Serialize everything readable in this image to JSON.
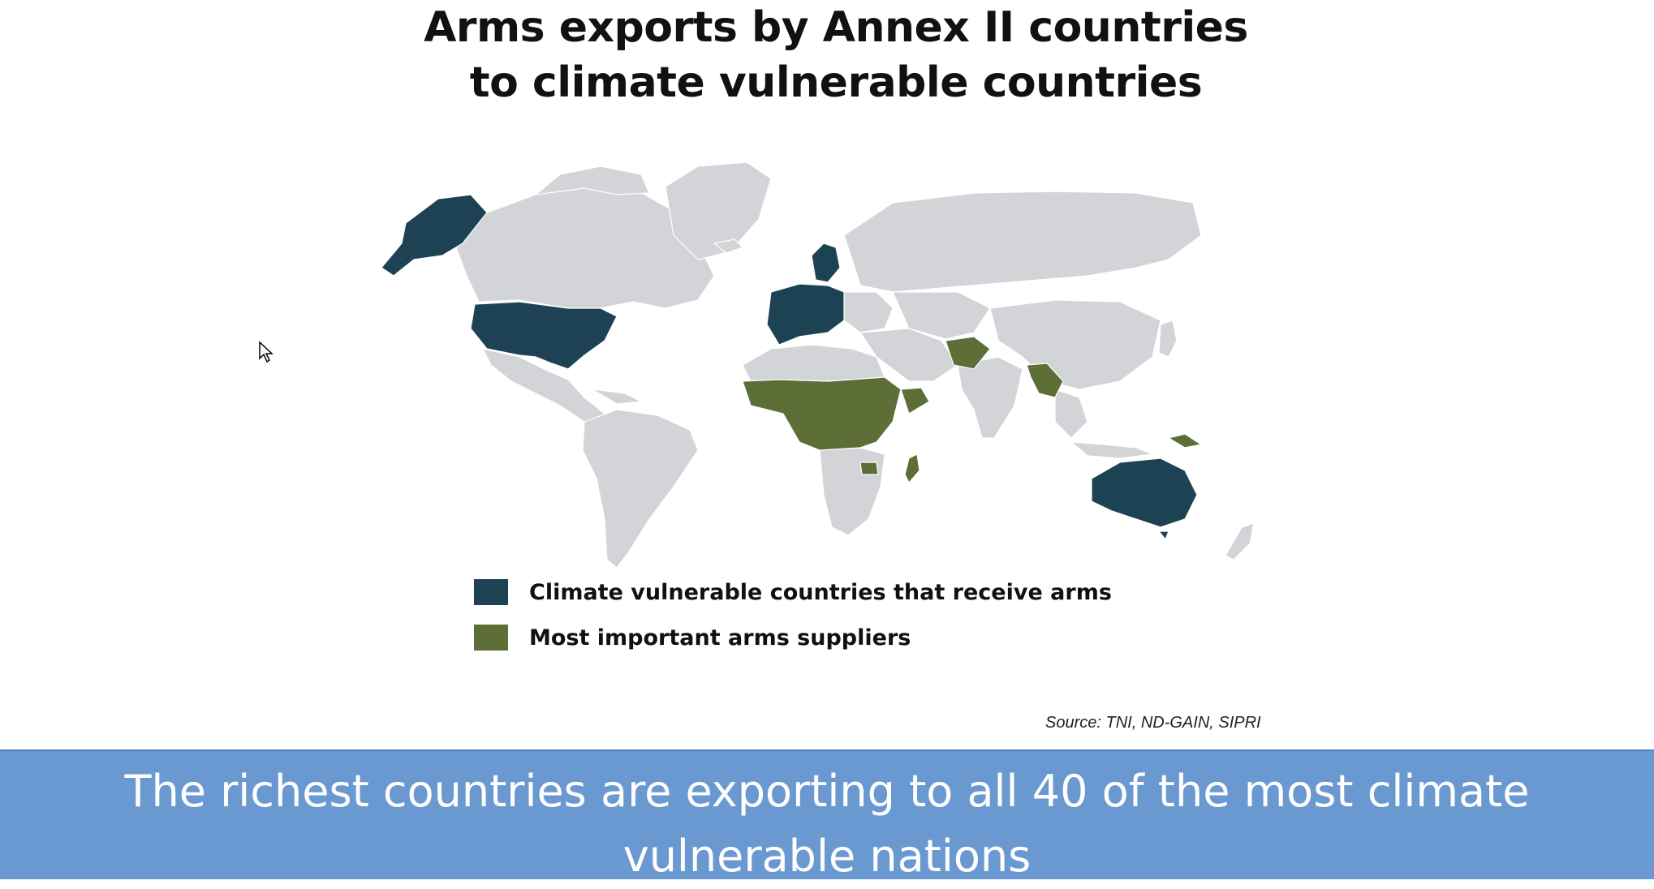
{
  "title": {
    "line1": "Arms exports by Annex II countries",
    "line2": "to climate vulnerable countries"
  },
  "legend": [
    {
      "label": "Climate vulnerable countries that receive arms",
      "color": "#1c4254"
    },
    {
      "label": "Most important arms suppliers",
      "color": "#5d6e37"
    }
  ],
  "map": {
    "land_color": "#d3d4d8",
    "border_color": "#ffffff"
  },
  "source": "Source: TNI, ND-GAIN, SIPRI",
  "caption": "The richest countries are exporting to all 40 of the most climate vulnerable nations",
  "colors": {
    "caption_band": "#6a98d0",
    "caption_text": "#ffffff"
  }
}
